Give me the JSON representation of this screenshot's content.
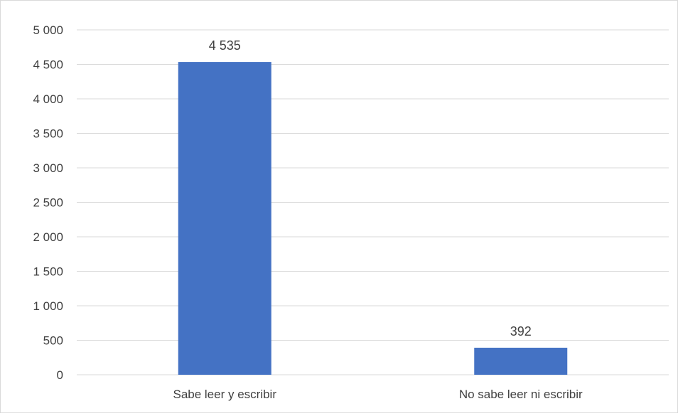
{
  "chart_data": {
    "type": "bar",
    "categories": [
      "Sabe leer y escribir",
      "No sabe leer ni escribir"
    ],
    "values": [
      4535,
      392
    ],
    "data_labels": [
      "4 535",
      "392"
    ],
    "ylim": [
      0,
      5000
    ],
    "y_ticks": [
      0,
      500,
      1000,
      1500,
      2000,
      2500,
      3000,
      3500,
      4000,
      4500,
      5000
    ],
    "y_tick_labels": [
      "0",
      "500",
      "1 000",
      "1 500",
      "2 000",
      "2 500",
      "3 000",
      "3 500",
      "4 000",
      "4 500",
      "5 000"
    ],
    "grid": true,
    "legend": "none",
    "bar_color": "#4472C4",
    "grid_color": "#d9d9d9",
    "text_color": "#404040"
  }
}
